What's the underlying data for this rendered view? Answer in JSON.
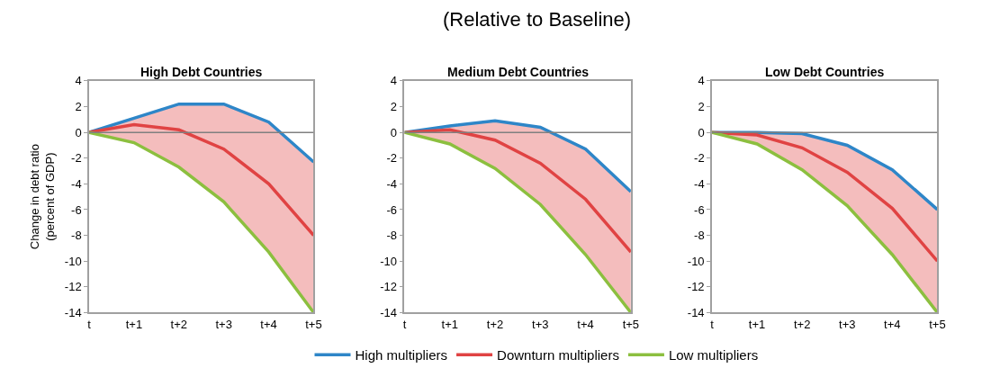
{
  "chart_data": [
    {
      "type": "line",
      "title": "High Debt Countries",
      "annotations": [
        "(Relative to Baseline)"
      ],
      "ylabel": "Change in debt ratio\n(percent of GDP)",
      "categories": [
        "t",
        "t+1",
        "t+2",
        "t+3",
        "t+4",
        "t+5"
      ],
      "ylim": [
        -14,
        4
      ],
      "yticks": [
        -14,
        -12,
        -10,
        -8,
        -6,
        -4,
        -2,
        0,
        2,
        4
      ],
      "legend": "bottom",
      "marker": "none",
      "line_style": "solid",
      "ref_lines": [
        {
          "axis": "y",
          "value": 0,
          "color": "#808080"
        }
      ],
      "series": [
        {
          "name": "High multipliers",
          "color": "#2e86c8",
          "values": [
            0,
            1.1,
            2.2,
            2.2,
            0.8,
            -2.3
          ]
        },
        {
          "name": "Downturn multipliers",
          "color": "#e04343",
          "values": [
            0,
            0.6,
            0.2,
            -1.3,
            -4,
            -8
          ],
          "lower": [
            0,
            -0.8,
            -2.7,
            -5.4,
            -9.3,
            -14
          ],
          "upper": [
            0,
            1.1,
            2.2,
            2.2,
            0.8,
            -2.3
          ]
        },
        {
          "name": "Low multipliers",
          "color": "#8cbf3f",
          "values": [
            0,
            -0.8,
            -2.7,
            -5.4,
            -9.3,
            -14
          ]
        }
      ]
    },
    {
      "type": "line",
      "title": "Medium Debt Countries",
      "categories": [
        "t",
        "t+1",
        "t+2",
        "t+3",
        "t+4",
        "t+5"
      ],
      "ylim": [
        -14,
        4
      ],
      "yticks": [
        -14,
        -12,
        -10,
        -8,
        -6,
        -4,
        -2,
        0,
        2,
        4
      ],
      "legend": "bottom",
      "marker": "none",
      "line_style": "solid",
      "ref_lines": [
        {
          "axis": "y",
          "value": 0,
          "color": "#808080"
        }
      ],
      "series": [
        {
          "name": "High multipliers",
          "color": "#2e86c8",
          "values": [
            0,
            0.5,
            0.9,
            0.4,
            -1.3,
            -4.6
          ]
        },
        {
          "name": "Downturn multipliers",
          "color": "#e04343",
          "values": [
            0,
            0.2,
            -0.6,
            -2.4,
            -5.2,
            -9.3
          ],
          "lower": [
            0,
            -0.9,
            -2.8,
            -5.6,
            -9.5,
            -14
          ],
          "upper": [
            0,
            0.5,
            0.9,
            0.4,
            -1.3,
            -4.6
          ]
        },
        {
          "name": "Low multipliers",
          "color": "#8cbf3f",
          "values": [
            0,
            -0.9,
            -2.8,
            -5.6,
            -9.5,
            -14
          ]
        }
      ]
    },
    {
      "type": "line",
      "title": "Low Debt Countries",
      "categories": [
        "t",
        "t+1",
        "t+2",
        "t+3",
        "t+4",
        "t+5"
      ],
      "ylim": [
        -14,
        4
      ],
      "yticks": [
        -14,
        -12,
        -10,
        -8,
        -6,
        -4,
        -2,
        0,
        2,
        4
      ],
      "legend": "bottom",
      "marker": "none",
      "line_style": "solid",
      "ref_lines": [
        {
          "axis": "y",
          "value": 0,
          "color": "#808080"
        }
      ],
      "series": [
        {
          "name": "High multipliers",
          "color": "#2e86c8",
          "values": [
            0,
            0,
            -0.1,
            -1,
            -2.9,
            -6
          ]
        },
        {
          "name": "Downturn multipliers",
          "color": "#e04343",
          "values": [
            0,
            -0.2,
            -1.2,
            -3.1,
            -5.9,
            -10
          ],
          "lower": [
            0,
            -0.9,
            -2.9,
            -5.7,
            -9.5,
            -14
          ],
          "upper": [
            0,
            0,
            -0.1,
            -1,
            -2.9,
            -6
          ]
        },
        {
          "name": "Low multipliers",
          "color": "#8cbf3f",
          "values": [
            0,
            -0.9,
            -2.9,
            -5.7,
            -9.5,
            -14
          ]
        }
      ]
    }
  ]
}
